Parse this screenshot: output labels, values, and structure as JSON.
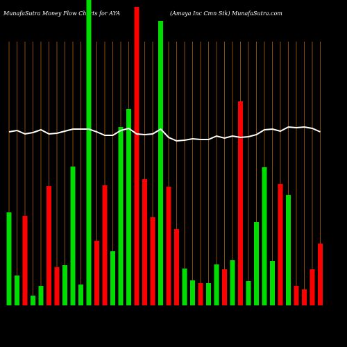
{
  "chart_data": {
    "type": "bar",
    "title": "MunafaSutra  Money  Flow  Charts for AYA",
    "subtitle": "(Amaya  Inc  Cmn  Stk) MunafaSutra.com",
    "ylim": [
      0,
      440
    ],
    "categories": [
      null,
      null,
      null,
      null,
      null,
      null,
      null,
      null,
      null,
      null,
      null,
      null,
      null,
      null,
      null,
      null,
      null,
      null,
      null,
      null,
      null,
      null,
      null,
      null,
      null,
      null,
      null,
      null,
      null,
      null,
      null,
      null,
      null,
      null,
      null,
      null,
      null,
      null,
      null,
      null
    ],
    "values": [
      134,
      43,
      129,
      14,
      28,
      172,
      55,
      58,
      200,
      30,
      445,
      93,
      173,
      78,
      257,
      283,
      430,
      182,
      127,
      410,
      171,
      110,
      53,
      36,
      32,
      32,
      59,
      52,
      65,
      294,
      35,
      120,
      199,
      64,
      175,
      159,
      28,
      23,
      52,
      89
    ],
    "colors": [
      "#00dd00",
      "#00dd00",
      "#ff0000",
      "#00dd00",
      "#00dd00",
      "#ff0000",
      "#ff0000",
      "#00dd00",
      "#00dd00",
      "#00dd00",
      "#00dd00",
      "#ff0000",
      "#ff0000",
      "#00dd00",
      "#00dd00",
      "#00dd00",
      "#ff0000",
      "#ff0000",
      "#ff0000",
      "#00dd00",
      "#ff0000",
      "#ff0000",
      "#00dd00",
      "#00dd00",
      "#ff0000",
      "#00dd00",
      "#00dd00",
      "#ff0000",
      "#00dd00",
      "#ff0000",
      "#00dd00",
      "#00dd00",
      "#00dd00",
      "#00dd00",
      "#ff0000",
      "#00dd00",
      "#ff0000",
      "#ff0000",
      "#ff0000",
      "#ff0000"
    ],
    "line_color": "#ffffff",
    "line_values": [
      250,
      252,
      247,
      249,
      253,
      247,
      248,
      251,
      254,
      254,
      254,
      250,
      245,
      245,
      252,
      255,
      247,
      246,
      247,
      254,
      242,
      237,
      238,
      240,
      239,
      239,
      244,
      241,
      244,
      242,
      243,
      246,
      253,
      254,
      251,
      257,
      256,
      257,
      255,
      250
    ],
    "grid_color": "#8a4a0a"
  }
}
